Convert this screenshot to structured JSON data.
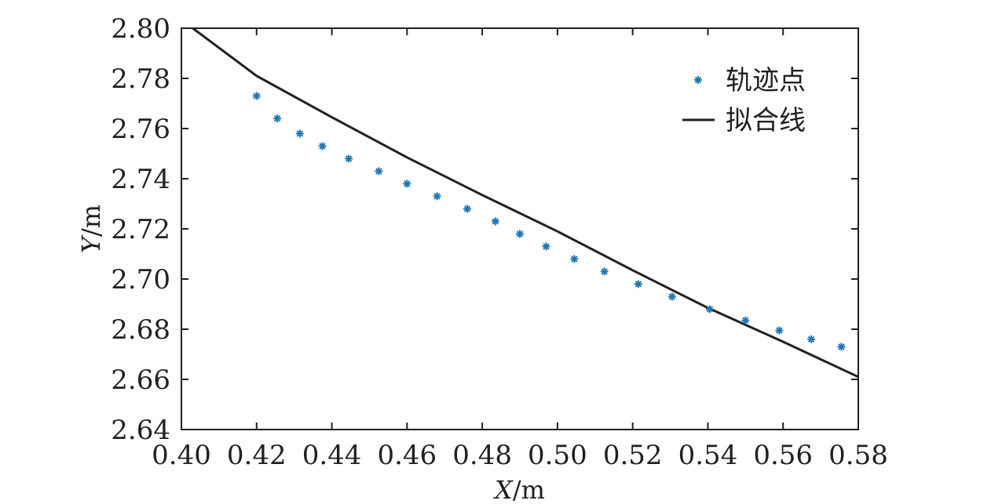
{
  "chart_data": {
    "type": "scatter",
    "xlabel_var": "X",
    "xlabel_unit": "/m",
    "ylabel_var": "Y",
    "ylabel_unit": "/m",
    "xlim": [
      0.4,
      0.58
    ],
    "ylim": [
      2.64,
      2.8
    ],
    "xticks": [
      "0.40",
      "0.42",
      "0.44",
      "0.46",
      "0.48",
      "0.50",
      "0.52",
      "0.54",
      "0.56",
      "0.58"
    ],
    "yticks": [
      "2.64",
      "2.66",
      "2.68",
      "2.70",
      "2.72",
      "2.74",
      "2.76",
      "2.78",
      "2.80"
    ],
    "legend_position": "top-right",
    "series": [
      {
        "name": "轨迹点",
        "kind": "scatter",
        "marker": "asterisk",
        "color": "#1f77b4",
        "x": [
          0.42,
          0.4255,
          0.4315,
          0.4375,
          0.4445,
          0.4525,
          0.46,
          0.468,
          0.476,
          0.4835,
          0.49,
          0.497,
          0.5045,
          0.5125,
          0.5215,
          0.5305,
          0.5405,
          0.55,
          0.559,
          0.5675,
          0.5755
        ],
        "y": [
          2.773,
          2.764,
          2.758,
          2.753,
          2.748,
          2.743,
          2.738,
          2.733,
          2.728,
          2.723,
          2.718,
          2.713,
          2.708,
          2.703,
          2.698,
          2.693,
          2.688,
          2.6835,
          2.6795,
          2.676,
          2.673
        ]
      },
      {
        "name": "拟合线",
        "kind": "line",
        "color": "#231f20",
        "x": [
          0.403,
          0.42,
          0.44,
          0.46,
          0.48,
          0.5,
          0.52,
          0.54,
          0.56,
          0.58
        ],
        "y": [
          2.8,
          2.781,
          2.7645,
          2.7485,
          2.7335,
          2.719,
          2.7035,
          2.6885,
          2.675,
          2.661
        ]
      }
    ]
  }
}
